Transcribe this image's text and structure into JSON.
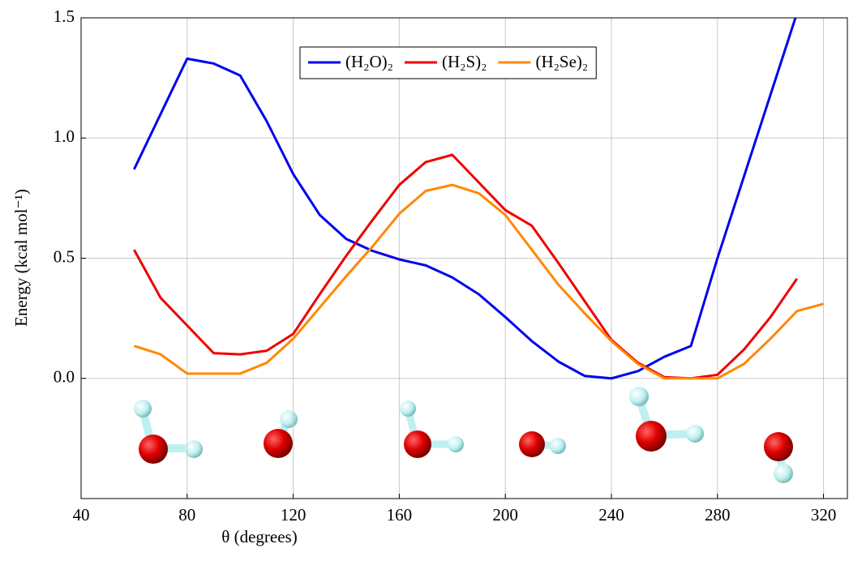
{
  "chart_data": {
    "type": "line",
    "xlabel": "θ (degrees)",
    "ylabel": "Energy (kcal mol⁻¹)",
    "x": [
      60,
      70,
      80,
      90,
      100,
      110,
      120,
      130,
      140,
      150,
      160,
      170,
      180,
      190,
      200,
      210,
      220,
      230,
      240,
      250,
      260,
      270,
      280,
      290,
      300,
      310,
      320
    ],
    "series": [
      {
        "name": "(H₂O)₂",
        "color": "#0000ee",
        "values": [
          0.87,
          1.1,
          1.33,
          1.31,
          1.26,
          1.07,
          0.85,
          0.68,
          0.58,
          0.53,
          0.495,
          0.47,
          0.42,
          0.35,
          0.255,
          0.155,
          0.07,
          0.01,
          0.0,
          0.03,
          0.09,
          0.135,
          0.5,
          0.84,
          1.18,
          1.52,
          null
        ]
      },
      {
        "name": "(H₂S)₂",
        "color": "#ee0000",
        "values": [
          0.535,
          0.335,
          0.22,
          0.105,
          0.1,
          0.115,
          0.185,
          0.35,
          0.51,
          0.66,
          0.805,
          0.9,
          0.93,
          0.815,
          0.7,
          0.635,
          0.48,
          0.32,
          0.16,
          0.065,
          0.005,
          0.0,
          0.015,
          0.12,
          0.255,
          0.415,
          null
        ]
      },
      {
        "name": "(H₂Se)₂",
        "color": "#ff8800",
        "values": [
          0.135,
          0.1,
          0.02,
          0.02,
          0.02,
          0.065,
          0.165,
          0.295,
          0.425,
          0.55,
          0.685,
          0.78,
          0.805,
          0.77,
          0.68,
          0.535,
          0.39,
          0.27,
          0.155,
          0.06,
          0.0,
          0.0,
          0.0,
          0.06,
          0.165,
          0.28,
          0.31
        ]
      }
    ],
    "xlim": [
      40,
      329
    ],
    "xticks": [
      40,
      80,
      120,
      160,
      200,
      240,
      280,
      320
    ],
    "ylim": [
      -0.5,
      1.5
    ],
    "yticks": [
      {
        "value": 0,
        "label": "0.0"
      },
      0.5,
      {
        "value": 1,
        "label": "1.0"
      },
      {
        "value": 1.5,
        "label": "1.5"
      }
    ],
    "grid": true,
    "legend": "top"
  }
}
